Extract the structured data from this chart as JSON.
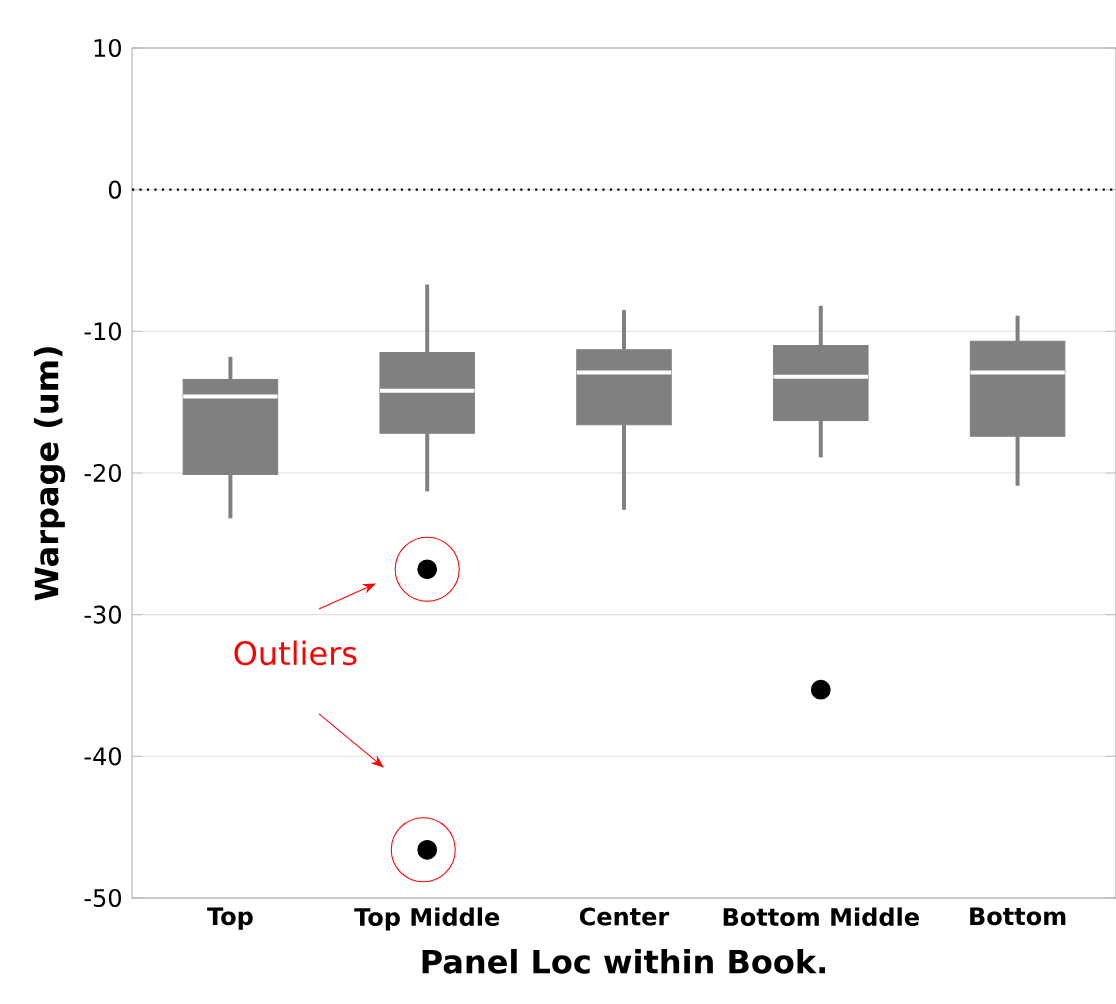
{
  "chart_data": {
    "type": "box",
    "xlabel": "Panel Loc within Book.",
    "ylabel": "Warpage (um)",
    "categories": [
      "Top",
      "Top Middle",
      "Center",
      "Bottom Middle",
      "Bottom"
    ],
    "color": "#808080",
    "boxes": [
      {
        "low": -23.2,
        "q1": -20.1,
        "median": -14.6,
        "q3": -13.4,
        "high": -11.8
      },
      {
        "low": -21.3,
        "q1": -17.2,
        "median": -14.2,
        "q3": -11.5,
        "high": -6.7,
        "outliers": [
          -26.8,
          -46.6
        ]
      },
      {
        "low": -22.6,
        "q1": -16.6,
        "median": -12.9,
        "q3": -11.3,
        "high": -8.5
      },
      {
        "low": -18.9,
        "q1": -16.3,
        "median": -13.2,
        "q3": -11.0,
        "high": -8.2,
        "outliers": [
          -35.3
        ]
      },
      {
        "low": -20.9,
        "q1": -17.4,
        "median": -12.9,
        "q3": -10.7,
        "high": -8.9
      }
    ],
    "ylim": [
      -50,
      10
    ],
    "yticks": [
      -50,
      -40,
      -30,
      -20,
      -10,
      0,
      10
    ],
    "grid": "y",
    "ref_lines": [
      {
        "axis": "y",
        "value": 0,
        "line_style": "dotted"
      }
    ],
    "annotations": [
      "Outliers"
    ]
  }
}
